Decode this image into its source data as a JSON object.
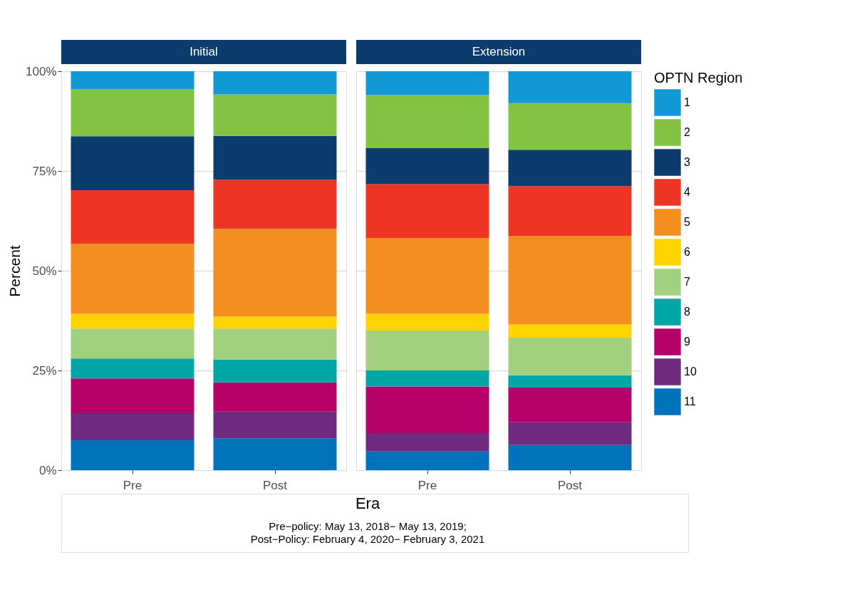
{
  "chart_data": [
    {
      "type": "bar",
      "stacked": true,
      "title": "Initial",
      "ylabel": "Percent",
      "xlabel": "Era",
      "categories": [
        "Pre",
        "Post"
      ],
      "ylim": [
        0,
        100
      ],
      "yticks": [
        {
          "value": 0,
          "label": "0%"
        },
        {
          "value": 25,
          "label": "25%"
        },
        {
          "value": 50,
          "label": "50%"
        },
        {
          "value": 75,
          "label": "75%"
        },
        {
          "value": 100,
          "label": "100%"
        }
      ],
      "grid": "y",
      "legend": false,
      "annotations": [
        "Pre−policy: May 13, 2018− May 13, 2019;",
        "Post−Policy: February 4, 2020− February 3, 2021"
      ],
      "series": [
        {
          "color": "#0071bb",
          "values": [
            7.5,
            8.0
          ]
        },
        {
          "color": "#6e2b7f",
          "values": [
            6.8,
            6.7
          ]
        },
        {
          "color": "#b5006a",
          "values": [
            8.7,
            7.3
          ]
        },
        {
          "color": "#00a5a5",
          "values": [
            5.0,
            5.7
          ]
        },
        {
          "color": "#a2d07e",
          "values": [
            7.5,
            7.8
          ]
        },
        {
          "color": "#ffd400",
          "values": [
            3.7,
            3.0
          ]
        },
        {
          "color": "#f28f1f",
          "values": [
            17.5,
            22.0
          ]
        },
        {
          "color": "#ee3524",
          "values": [
            13.5,
            12.3
          ]
        },
        {
          "color": "#0c3c6e",
          "values": [
            13.5,
            11.0
          ]
        },
        {
          "color": "#82c341",
          "values": [
            11.8,
            10.4
          ]
        },
        {
          "color": "#1199d6",
          "values": [
            4.5,
            5.8
          ]
        }
      ]
    },
    {
      "type": "bar",
      "stacked": true,
      "title": "Extension",
      "legend_title": "OPTN Region",
      "categories": [
        "Pre",
        "Post"
      ],
      "ylim": [
        0,
        100
      ],
      "yticks": [
        0,
        25,
        50,
        75,
        100
      ],
      "grid": "y",
      "legend": "right",
      "tick_labels": "x",
      "series": [
        {
          "name": "11",
          "color": "#0071bb",
          "values": [
            4.7,
            6.3
          ]
        },
        {
          "name": "10",
          "color": "#6e2b7f",
          "values": [
            4.6,
            5.7
          ]
        },
        {
          "name": "9",
          "color": "#b5006a",
          "values": [
            11.7,
            8.7
          ]
        },
        {
          "name": "8",
          "color": "#00a5a5",
          "values": [
            4.0,
            3.1
          ]
        },
        {
          "name": "7",
          "color": "#a2d07e",
          "values": [
            10.0,
            9.4
          ]
        },
        {
          "name": "6",
          "color": "#ffd400",
          "values": [
            4.2,
            3.3
          ]
        },
        {
          "name": "5",
          "color": "#f28f1f",
          "values": [
            19.0,
            22.2
          ]
        },
        {
          "name": "4",
          "color": "#ee3524",
          "values": [
            13.5,
            12.5
          ]
        },
        {
          "name": "3",
          "color": "#0c3c6e",
          "values": [
            9.1,
            9.1
          ]
        },
        {
          "name": "2",
          "color": "#82c341",
          "values": [
            13.2,
            11.7
          ]
        },
        {
          "name": "1",
          "color": "#1199d6",
          "values": [
            6.0,
            8.0
          ]
        }
      ]
    }
  ]
}
